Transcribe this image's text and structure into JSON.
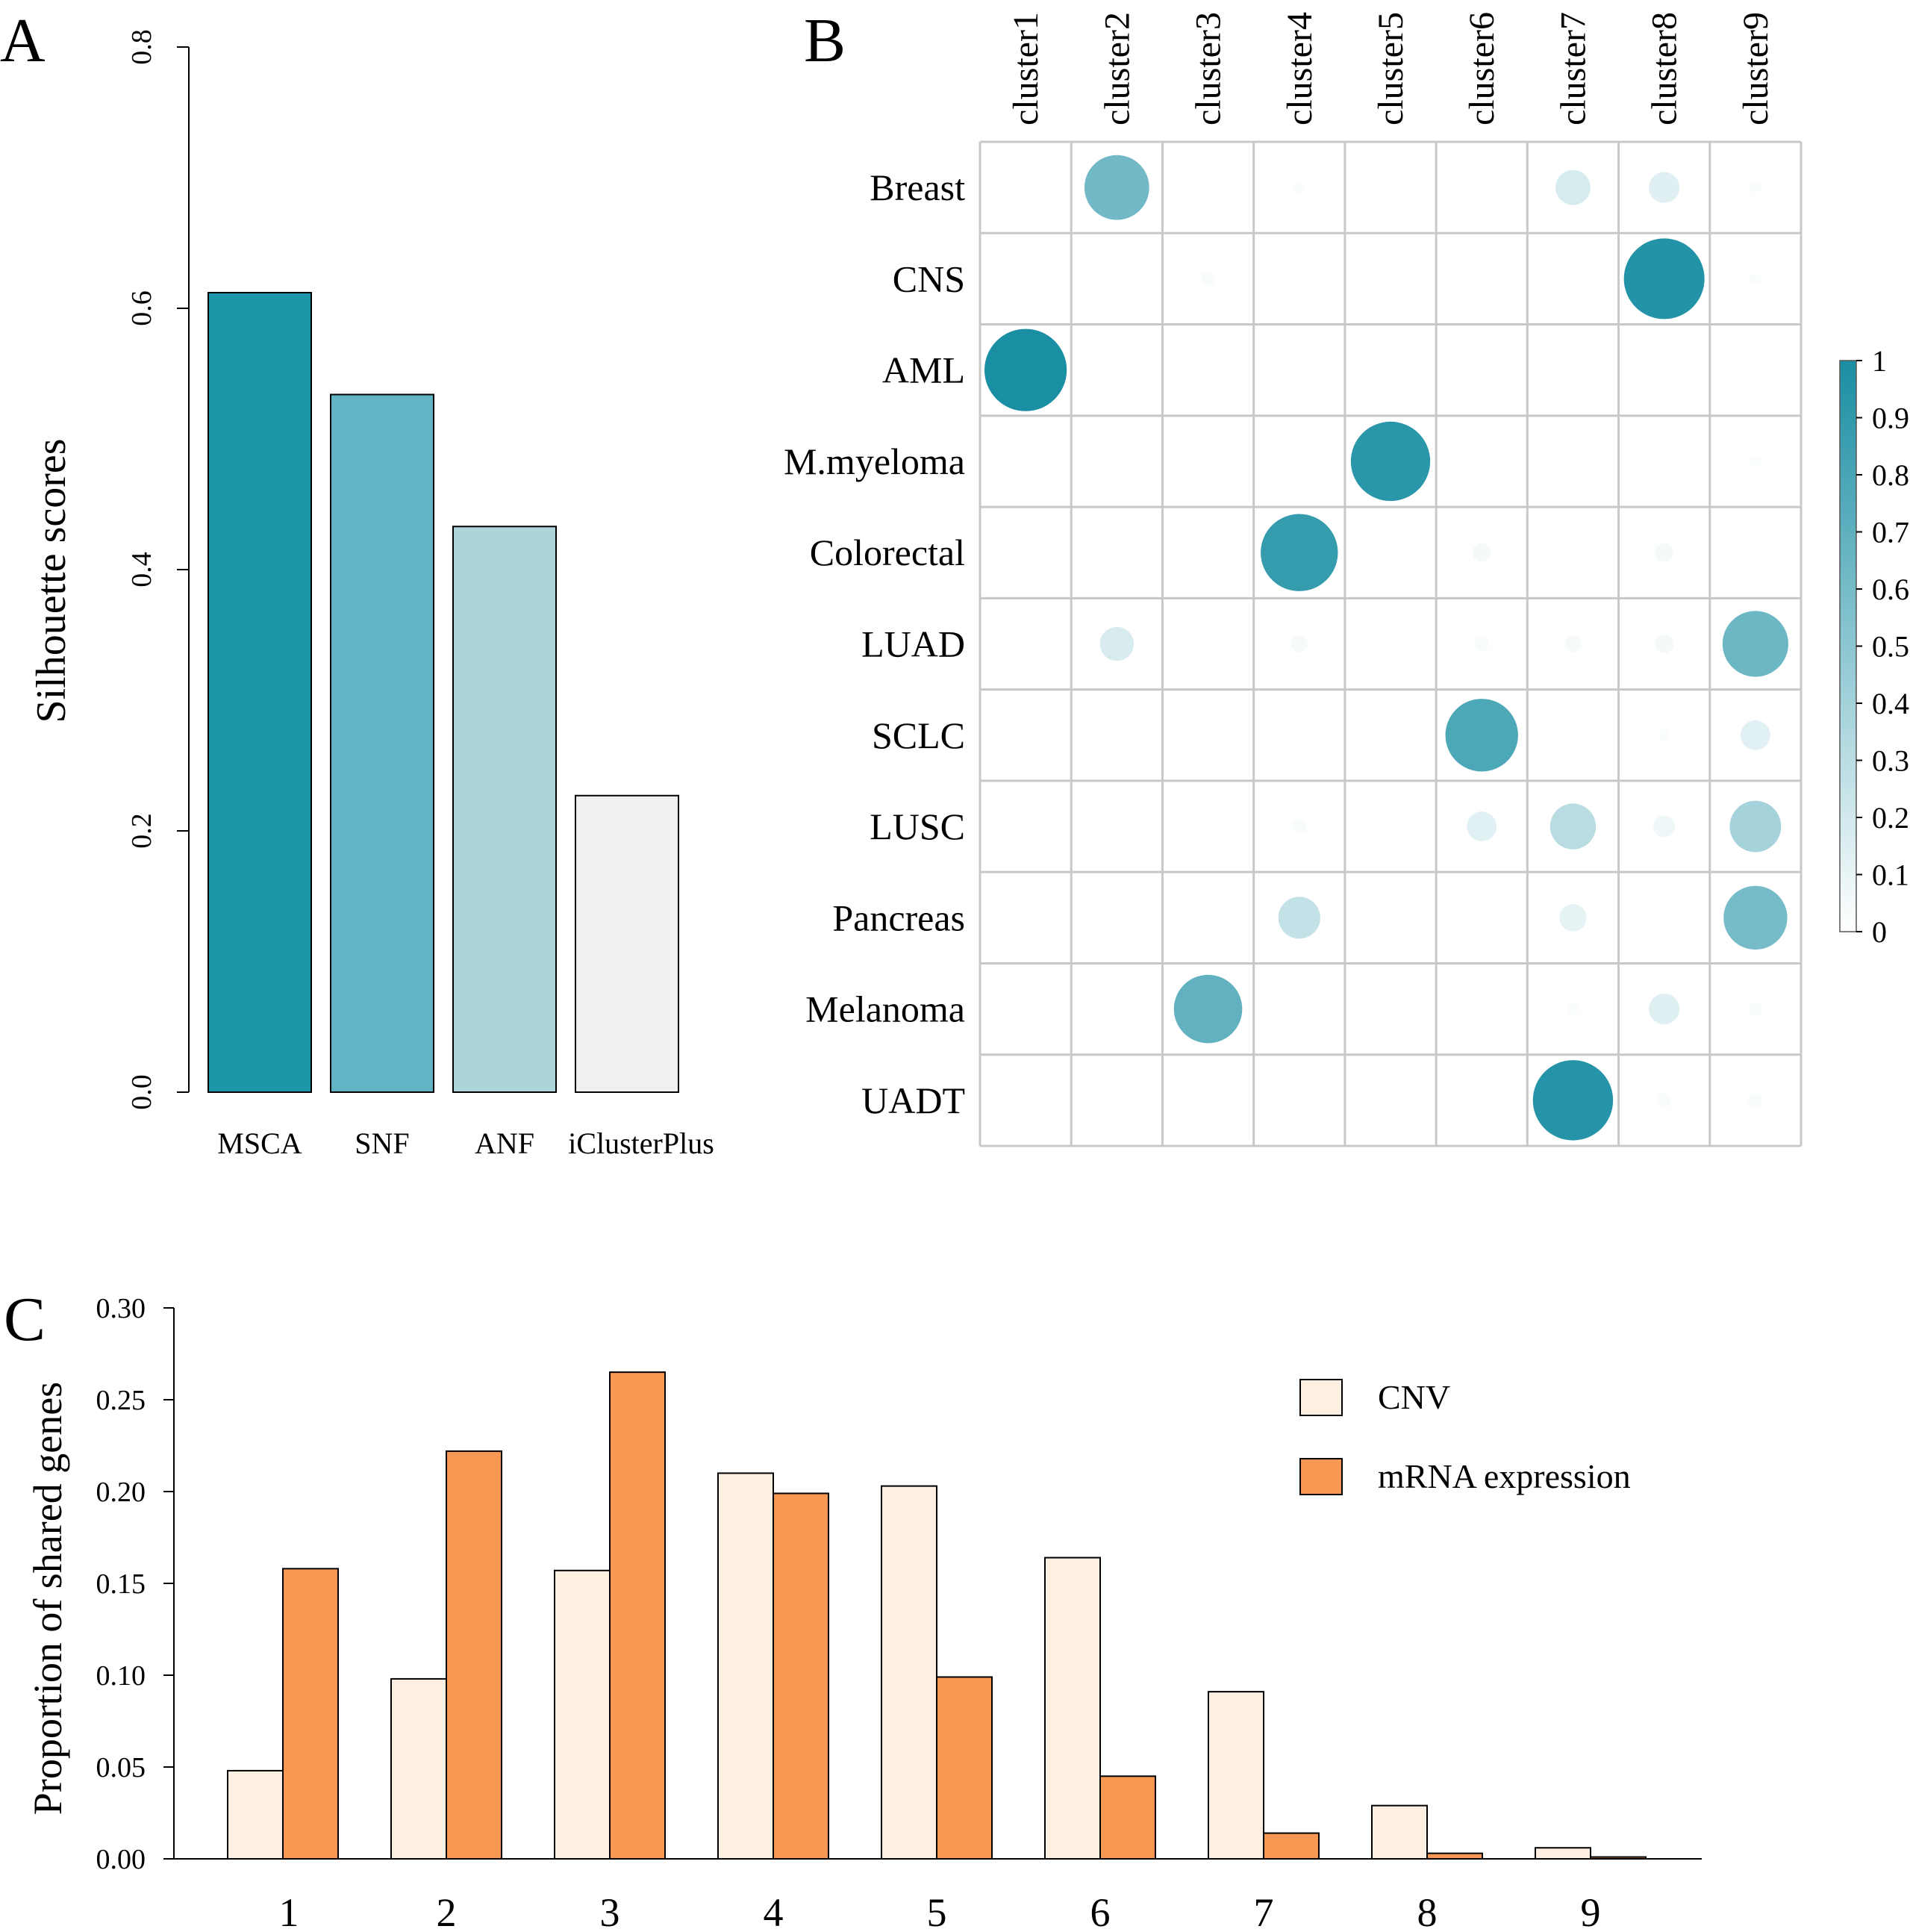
{
  "chart_data": [
    {
      "panel_label": "A",
      "type": "bar",
      "title": "",
      "xlabel": "",
      "ylabel": "Silhouette scores",
      "categories": [
        "MSCA",
        "SNF",
        "ANF",
        "iClusterPlus"
      ],
      "values": [
        0.612,
        0.534,
        0.433,
        0.227
      ],
      "bar_colors": [
        "#1e96aa",
        "#62b4c4",
        "#add4db",
        "#f0f0f0"
      ],
      "ylim": [
        0,
        0.8
      ],
      "yticks": [
        "0.0",
        "0.2",
        "0.4",
        "0.6",
        "0.8"
      ],
      "yticks_values": [
        0,
        0.2,
        0.4,
        0.6,
        0.8
      ],
      "grid": false
    },
    {
      "panel_label": "B",
      "type": "heatmap",
      "title": "",
      "columns": [
        "cluster1",
        "cluster2",
        "cluster3",
        "cluster4",
        "cluster5",
        "cluster6",
        "cluster7",
        "cluster8",
        "cluster9"
      ],
      "rows": [
        "Breast",
        "CNS",
        "AML",
        "M.myeloma",
        "Colorectal",
        "LUAD",
        "SCLC",
        "LUSC",
        "Pancreas",
        "Melanoma",
        "UADT"
      ],
      "values": [
        [
          0,
          0.62,
          0,
          0.02,
          0,
          0,
          0.18,
          0.14,
          0.02
        ],
        [
          0,
          0,
          0.03,
          0,
          0,
          0,
          0,
          0.96,
          0.02
        ],
        [
          1.0,
          0,
          0,
          0,
          0,
          0,
          0,
          0,
          0
        ],
        [
          0,
          0,
          0,
          0,
          0.93,
          0,
          0,
          0,
          0.02
        ],
        [
          0,
          0,
          0,
          0.88,
          0,
          0.05,
          0,
          0.05,
          0
        ],
        [
          0,
          0.17,
          0,
          0.04,
          0,
          0.03,
          0.04,
          0.05,
          0.64
        ],
        [
          0,
          0,
          0,
          0,
          0,
          0.78,
          0,
          0.02,
          0.13
        ],
        [
          0,
          0,
          0,
          0.03,
          0,
          0.13,
          0.31,
          0.07,
          0.39
        ],
        [
          0,
          0,
          0,
          0.26,
          0,
          0,
          0.11,
          0,
          0.6
        ],
        [
          0,
          0,
          0.69,
          0,
          0,
          0,
          0.02,
          0.14,
          0.03
        ],
        [
          0,
          0,
          0,
          0,
          0,
          0,
          0.95,
          0.03,
          0.03
        ]
      ],
      "colorbar": {
        "range": [
          0,
          1
        ],
        "ticks": [
          "0",
          "0.1",
          "0.2",
          "0.3",
          "0.4",
          "0.5",
          "0.6",
          "0.7",
          "0.8",
          "0.9",
          "1"
        ],
        "low_color": "#ffffff",
        "high_color": "#1a8ea3"
      }
    },
    {
      "panel_label": "C",
      "type": "bar",
      "title": "",
      "xlabel": "",
      "ylabel": "Proportion of shared genes",
      "categories": [
        "1",
        "2",
        "3",
        "4",
        "5",
        "6",
        "7",
        "8",
        "9"
      ],
      "series": [
        {
          "name": "CNV",
          "color": "#fdf0e3",
          "values": [
            0.048,
            0.098,
            0.157,
            0.21,
            0.203,
            0.164,
            0.091,
            0.029,
            0.006
          ]
        },
        {
          "name": "mRNA expression",
          "color": "#f99852",
          "values": [
            0.158,
            0.222,
            0.265,
            0.199,
            0.099,
            0.045,
            0.014,
            0.003,
            0.001
          ]
        }
      ],
      "ylim": [
        0,
        0.3
      ],
      "yticks": [
        "0.00",
        "0.05",
        "0.10",
        "0.15",
        "0.20",
        "0.25",
        "0.30"
      ],
      "yticks_values": [
        0,
        0.05,
        0.1,
        0.15,
        0.2,
        0.25,
        0.3
      ],
      "legend_position": "top-right",
      "grid": false
    }
  ]
}
